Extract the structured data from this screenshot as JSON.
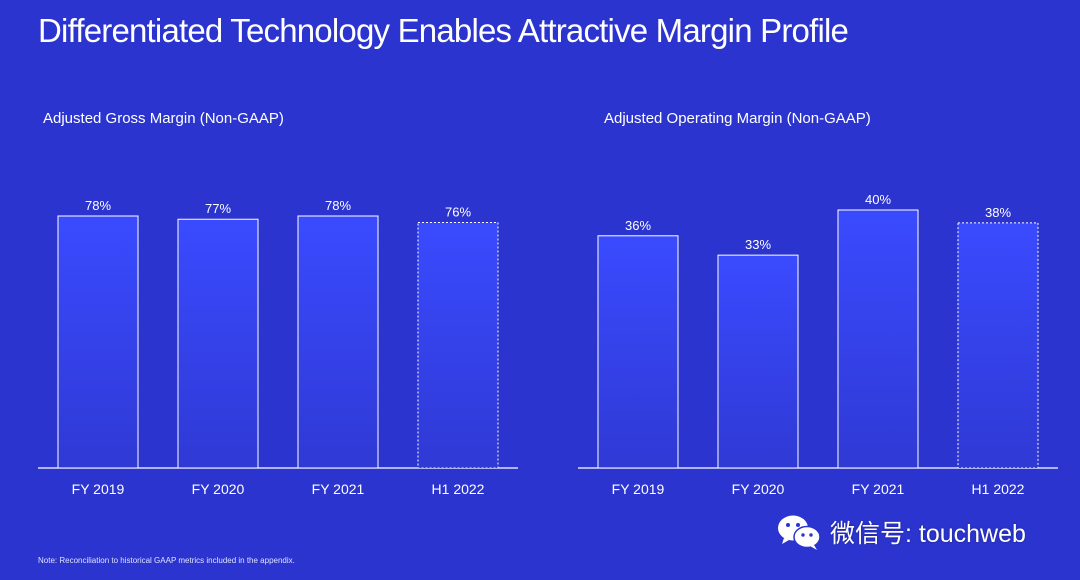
{
  "title": "Differentiated Technology Enables Attractive Margin Profile",
  "note": "Note: Reconciliation to historical GAAP metrics included in the appendix.",
  "watermark": {
    "icon": "wechat-icon",
    "text": "微信号: touchweb"
  },
  "colors": {
    "background": "#2b34cf",
    "bar_top": "#3a4bff",
    "bar_bottom": "#2f39d4"
  },
  "chart_data": [
    {
      "type": "bar",
      "title": "Adjusted Gross Margin (Non-GAAP)",
      "categories": [
        "FY 2019",
        "FY 2020",
        "FY 2021",
        "H1 2022"
      ],
      "values": [
        78,
        77,
        78,
        76
      ],
      "labels": [
        "78%",
        "77%",
        "78%",
        "76%"
      ],
      "dashed": [
        false,
        false,
        false,
        true
      ],
      "ylim": [
        0,
        78
      ]
    },
    {
      "type": "bar",
      "title": "Adjusted Operating Margin (Non-GAAP)",
      "categories": [
        "FY 2019",
        "FY 2020",
        "FY 2021",
        "H1 2022"
      ],
      "values": [
        36,
        33,
        40,
        38
      ],
      "labels": [
        "36%",
        "33%",
        "40%",
        "38%"
      ],
      "dashed": [
        false,
        false,
        false,
        true
      ],
      "ylim": [
        0,
        40
      ]
    }
  ]
}
